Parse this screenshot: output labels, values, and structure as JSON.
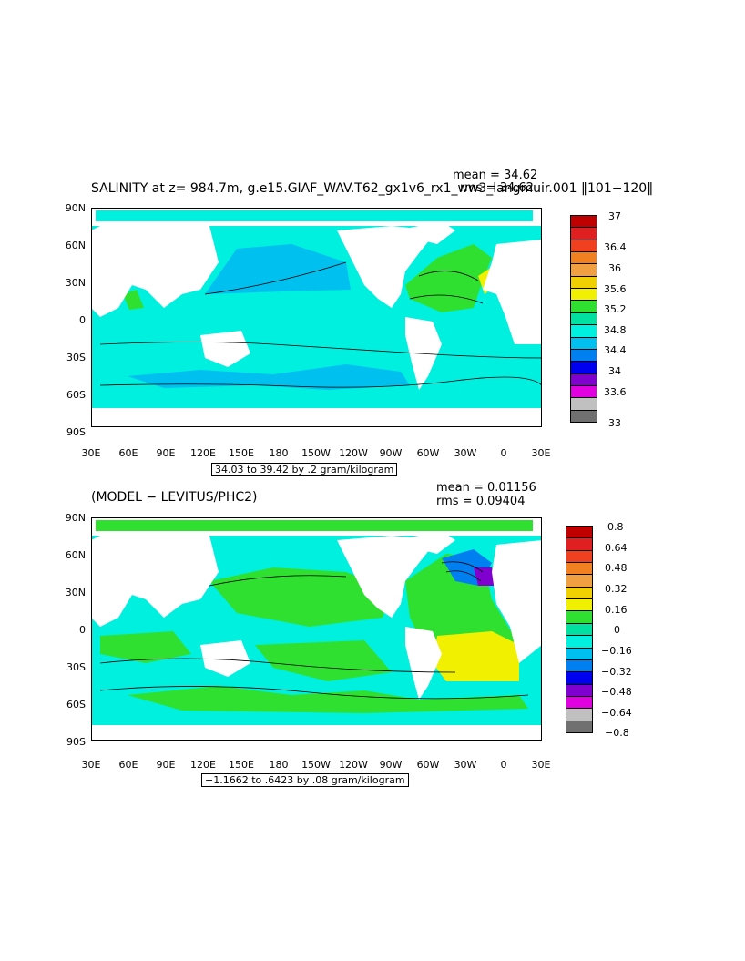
{
  "panels": [
    {
      "title": "SALINITY at z= 984.7m, g.e15.GIAF_WAV.T62_gx1v6_rx1_ww3_langmuir.001  ‖101−120‖",
      "mean": "mean = 34.62",
      "rms": "rms = 34.62",
      "contour_info": "34.03 to 39.42 by .2 gram/kilogram",
      "ocean_color": "#00f0e0",
      "colorbar_labels": [
        "37",
        "36.4",
        "36",
        "35.6",
        "35.2",
        "34.8",
        "34.4",
        "34",
        "33.6",
        "33"
      ]
    },
    {
      "title": "(MODEL − LEVITUS/PHC2)",
      "mean": "mean = 0.01156",
      "rms": "rms = 0.09404",
      "contour_info": "−1.1662 to .6423 by .08 gram/kilogram",
      "ocean_color": "#00f0e0",
      "colorbar_labels": [
        "0.8",
        "0.64",
        "0.48",
        "0.32",
        "0.16",
        "0",
        "−0.16",
        "−0.32",
        "−0.48",
        "−0.64",
        "−0.8"
      ]
    }
  ],
  "lat_labels": [
    "90N",
    "60N",
    "30N",
    "0",
    "30S",
    "60S",
    "90S"
  ],
  "lon_labels": [
    "30E",
    "60E",
    "90E",
    "120E",
    "150E",
    "180",
    "150W",
    "120W",
    "90W",
    "60W",
    "30W",
    "0",
    "30E"
  ],
  "colorbar1_colors": [
    "#c00000",
    "#e02020",
    "#f04020",
    "#f08020",
    "#f0a040",
    "#f0d000",
    "#f0f000",
    "#30e030",
    "#00e0a0",
    "#00f0e0",
    "#00c0f0",
    "#0080f0",
    "#0000f0",
    "#8000d0",
    "#e000e0",
    "#c0c0c0",
    "#707070"
  ],
  "colorbar2_colors": [
    "#c00000",
    "#e02020",
    "#f04020",
    "#f08020",
    "#f0a040",
    "#f0d000",
    "#f0f000",
    "#30e030",
    "#00e0a0",
    "#00f0e0",
    "#00c0f0",
    "#0080f0",
    "#0000f0",
    "#8000d0",
    "#e000e0",
    "#c0c0c0",
    "#707070"
  ]
}
